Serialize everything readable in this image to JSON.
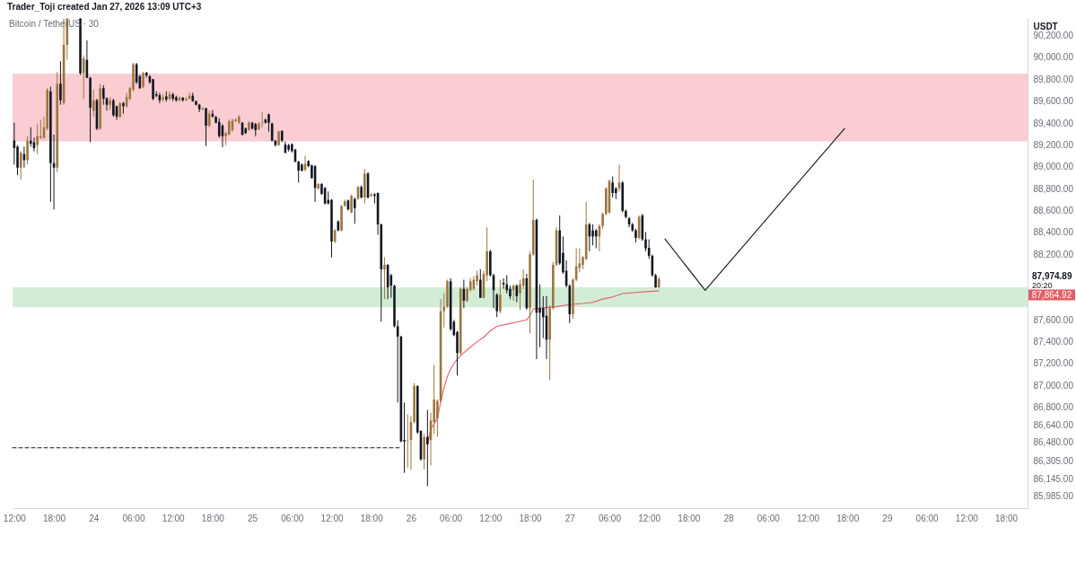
{
  "chart_data": {
    "type": "candlestick",
    "title": "Bitcoin / TetherUS · 30",
    "ylabel": "USDT",
    "annotations": [
      "Trader_Toji created Jan 27, 2026 13:09 UTC+3",
      "87,974.89",
      "20:20",
      "87,864.92"
    ],
    "xlim": [
      "2026-01-23T11:45",
      "2026-01-29T21:15"
    ],
    "ylim": [
      85878,
      90361
    ],
    "xticks": [
      {
        "value": "2026-01-23T12:00",
        "label": "12:00"
      },
      {
        "value": "2026-01-23T18:00",
        "label": "18:00"
      },
      {
        "value": "2026-01-24T00:00",
        "label": "24"
      },
      {
        "value": "2026-01-24T06:00",
        "label": "06:00"
      },
      {
        "value": "2026-01-24T12:00",
        "label": "12:00"
      },
      {
        "value": "2026-01-24T18:00",
        "label": "18:00"
      },
      {
        "value": "2026-01-25T00:00",
        "label": "25"
      },
      {
        "value": "2026-01-25T06:00",
        "label": "06:00"
      },
      {
        "value": "2026-01-25T12:00",
        "label": "12:00"
      },
      {
        "value": "2026-01-25T18:00",
        "label": "18:00"
      },
      {
        "value": "2026-01-26T00:00",
        "label": "26"
      },
      {
        "value": "2026-01-26T06:00",
        "label": "06:00"
      },
      {
        "value": "2026-01-26T12:00",
        "label": "12:00"
      },
      {
        "value": "2026-01-26T18:00",
        "label": "18:00"
      },
      {
        "value": "2026-01-27T00:00",
        "label": "27"
      },
      {
        "value": "2026-01-27T06:00",
        "label": "06:00"
      },
      {
        "value": "2026-01-27T12:00",
        "label": "12:00"
      },
      {
        "value": "2026-01-27T18:00",
        "label": "18:00"
      },
      {
        "value": "2026-01-28T00:00",
        "label": "28"
      },
      {
        "value": "2026-01-28T06:00",
        "label": "06:00"
      },
      {
        "value": "2026-01-28T12:00",
        "label": "12:00"
      },
      {
        "value": "2026-01-28T18:00",
        "label": "18:00"
      },
      {
        "value": "2026-01-29T00:00",
        "label": "29"
      },
      {
        "value": "2026-01-29T06:00",
        "label": "06:00"
      },
      {
        "value": "2026-01-29T12:00",
        "label": "12:00"
      },
      {
        "value": "2026-01-29T18:00",
        "label": "18:00"
      }
    ],
    "yticks": [
      {
        "value": 90200,
        "label": "90,200.00"
      },
      {
        "value": 90000,
        "label": "90,000.00"
      },
      {
        "value": 89800,
        "label": "89,800.00"
      },
      {
        "value": 89600,
        "label": "89,600.00"
      },
      {
        "value": 89400,
        "label": "89,400.00"
      },
      {
        "value": 89200,
        "label": "89,200.00"
      },
      {
        "value": 89000,
        "label": "89,000.00"
      },
      {
        "value": 88800,
        "label": "88,800.00"
      },
      {
        "value": 88600,
        "label": "88,600.00"
      },
      {
        "value": 88400,
        "label": "88,400.00"
      },
      {
        "value": 88200,
        "label": "88,200.00"
      },
      {
        "value": 87600,
        "label": "87,600.00"
      },
      {
        "value": 87400,
        "label": "87,400.00"
      },
      {
        "value": 87200,
        "label": "87,200.00"
      },
      {
        "value": 87000,
        "label": "87,000.00"
      },
      {
        "value": 86800,
        "label": "86,800.00"
      },
      {
        "value": 86640,
        "label": "86,640.00"
      },
      {
        "value": 86480,
        "label": "86,480.00"
      },
      {
        "value": 86305,
        "label": "86,305.00"
      },
      {
        "value": 86145,
        "label": "86,145.00"
      },
      {
        "value": 85985,
        "label": "85,985.00"
      }
    ],
    "bands": [
      {
        "axis": "y",
        "from": 89232,
        "to": 89852,
        "color": "#f9cdd2"
      },
      {
        "axis": "y",
        "from": 87715,
        "to": 87897,
        "color": "#d3ecd6"
      }
    ],
    "x": [
      "2026-01-23T12:00",
      "2026-01-23T12:30",
      "2026-01-23T13:00",
      "2026-01-23T13:30",
      "2026-01-23T14:00",
      "2026-01-23T14:30",
      "2026-01-23T15:00",
      "2026-01-23T15:30",
      "2026-01-23T16:00",
      "2026-01-23T16:30",
      "2026-01-23T17:00",
      "2026-01-23T17:30",
      "2026-01-23T18:00",
      "2026-01-23T18:30",
      "2026-01-23T19:00",
      "2026-01-23T19:30",
      "2026-01-23T20:00",
      "2026-01-23T22:00",
      "2026-01-23T22:30",
      "2026-01-23T23:00",
      "2026-01-23T23:30",
      "2026-01-24T00:00",
      "2026-01-24T00:30",
      "2026-01-24T01:00",
      "2026-01-24T01:30",
      "2026-01-24T02:00",
      "2026-01-24T02:30",
      "2026-01-24T03:00",
      "2026-01-24T03:30",
      "2026-01-24T04:00",
      "2026-01-24T04:30",
      "2026-01-24T05:00",
      "2026-01-24T05:30",
      "2026-01-24T06:00",
      "2026-01-24T06:30",
      "2026-01-24T07:00",
      "2026-01-24T07:30",
      "2026-01-24T08:00",
      "2026-01-24T08:30",
      "2026-01-24T09:00",
      "2026-01-24T09:30",
      "2026-01-24T10:00",
      "2026-01-24T10:30",
      "2026-01-24T11:00",
      "2026-01-24T11:30",
      "2026-01-24T12:00",
      "2026-01-24T12:30",
      "2026-01-24T13:00",
      "2026-01-24T13:30",
      "2026-01-24T14:00",
      "2026-01-24T14:30",
      "2026-01-24T15:00",
      "2026-01-24T15:30",
      "2026-01-24T16:00",
      "2026-01-24T16:30",
      "2026-01-24T17:00",
      "2026-01-24T17:30",
      "2026-01-24T18:00",
      "2026-01-24T18:30",
      "2026-01-24T19:00",
      "2026-01-24T19:30",
      "2026-01-24T20:00",
      "2026-01-24T20:30",
      "2026-01-24T21:00",
      "2026-01-24T21:30",
      "2026-01-24T22:00",
      "2026-01-24T22:30",
      "2026-01-24T23:00",
      "2026-01-24T23:30",
      "2026-01-25T00:00",
      "2026-01-25T00:30",
      "2026-01-25T01:00",
      "2026-01-25T01:30",
      "2026-01-25T02:00",
      "2026-01-25T02:30",
      "2026-01-25T03:00",
      "2026-01-25T03:30",
      "2026-01-25T04:00",
      "2026-01-25T04:30",
      "2026-01-25T05:00",
      "2026-01-25T05:30",
      "2026-01-25T06:00",
      "2026-01-25T06:30",
      "2026-01-25T07:00",
      "2026-01-25T07:30",
      "2026-01-25T08:00",
      "2026-01-25T08:30",
      "2026-01-25T09:00",
      "2026-01-25T09:30",
      "2026-01-25T10:00",
      "2026-01-25T10:30",
      "2026-01-25T11:00",
      "2026-01-25T11:30",
      "2026-01-25T12:00",
      "2026-01-25T12:30",
      "2026-01-25T13:00",
      "2026-01-25T13:30",
      "2026-01-25T14:00",
      "2026-01-25T14:30",
      "2026-01-25T15:00",
      "2026-01-25T15:30",
      "2026-01-25T16:00",
      "2026-01-25T16:30",
      "2026-01-25T17:00",
      "2026-01-25T17:30",
      "2026-01-25T18:00",
      "2026-01-25T18:30",
      "2026-01-25T19:00",
      "2026-01-25T19:30",
      "2026-01-25T20:00",
      "2026-01-25T20:30",
      "2026-01-25T21:00",
      "2026-01-25T21:30",
      "2026-01-25T22:00",
      "2026-01-25T22:30",
      "2026-01-25T23:00",
      "2026-01-25T23:30",
      "2026-01-26T00:00",
      "2026-01-26T00:30",
      "2026-01-26T01:00",
      "2026-01-26T01:30",
      "2026-01-26T02:00",
      "2026-01-26T02:30",
      "2026-01-26T03:00",
      "2026-01-26T03:30",
      "2026-01-26T04:00",
      "2026-01-26T04:30",
      "2026-01-26T05:00",
      "2026-01-26T05:30",
      "2026-01-26T06:00",
      "2026-01-26T06:30",
      "2026-01-26T07:00",
      "2026-01-26T07:30",
      "2026-01-26T08:00",
      "2026-01-26T08:30",
      "2026-01-26T09:00",
      "2026-01-26T09:30",
      "2026-01-26T10:00",
      "2026-01-26T10:30",
      "2026-01-26T11:00",
      "2026-01-26T11:30",
      "2026-01-26T12:00",
      "2026-01-26T12:30",
      "2026-01-26T13:00",
      "2026-01-26T13:30",
      "2026-01-26T14:00",
      "2026-01-26T14:30",
      "2026-01-26T15:00",
      "2026-01-26T15:30",
      "2026-01-26T16:00",
      "2026-01-26T16:30",
      "2026-01-26T17:00",
      "2026-01-26T17:30",
      "2026-01-26T18:00",
      "2026-01-26T18:30",
      "2026-01-26T19:00",
      "2026-01-26T19:30",
      "2026-01-26T20:00",
      "2026-01-26T20:30",
      "2026-01-26T21:00",
      "2026-01-26T21:30",
      "2026-01-26T22:00",
      "2026-01-26T22:30",
      "2026-01-26T23:00",
      "2026-01-26T23:30",
      "2026-01-27T00:00",
      "2026-01-27T00:30",
      "2026-01-27T01:00",
      "2026-01-27T01:30",
      "2026-01-27T02:00",
      "2026-01-27T02:30",
      "2026-01-27T03:00",
      "2026-01-27T03:30",
      "2026-01-27T04:00",
      "2026-01-27T04:30",
      "2026-01-27T05:00",
      "2026-01-27T05:30",
      "2026-01-27T06:00",
      "2026-01-27T06:30",
      "2026-01-27T07:00",
      "2026-01-27T07:30",
      "2026-01-27T08:00",
      "2026-01-27T08:30",
      "2026-01-27T09:00",
      "2026-01-27T09:30",
      "2026-01-27T10:00",
      "2026-01-27T10:30",
      "2026-01-27T11:00",
      "2026-01-27T11:30",
      "2026-01-27T12:00",
      "2026-01-27T12:30",
      "2026-01-27T13:00",
      "2026-01-27T13:30"
    ],
    "ohlc": [
      [
        89239,
        89403,
        89020,
        89170
      ],
      [
        89184,
        89198,
        88924,
        88992
      ],
      [
        88992,
        89143,
        88883,
        89129
      ],
      [
        89116,
        89184,
        88992,
        89061
      ],
      [
        89061,
        89280,
        89020,
        89239
      ],
      [
        89239,
        89362,
        89184,
        89211
      ],
      [
        89225,
        89266,
        89143,
        89170
      ],
      [
        89198,
        89389,
        89116,
        89280
      ],
      [
        89266,
        89430,
        89252,
        89280
      ],
      [
        89266,
        89458,
        89252,
        89362
      ],
      [
        89348,
        89718,
        89335,
        89704
      ],
      [
        89690,
        89732,
        88678,
        89034
      ],
      [
        89034,
        89294,
        88609,
        88992
      ],
      [
        88992,
        89868,
        88951,
        89759
      ],
      [
        89759,
        89964,
        89567,
        89608
      ],
      [
        89581,
        90355,
        89567,
        90115
      ],
      [
        90115,
        90360,
        89978,
        90355
      ],
      [
        90355,
        90360,
        89840,
        89855
      ],
      [
        89855,
        90019,
        89622,
        89992
      ],
      [
        89978,
        90156,
        89810,
        89814
      ],
      [
        89814,
        89820,
        89225,
        89540
      ],
      [
        89513,
        89704,
        89458,
        89608
      ],
      [
        89608,
        89622,
        89335,
        89348
      ],
      [
        89348,
        89759,
        89340,
        89718
      ],
      [
        89718,
        89745,
        89567,
        89622
      ],
      [
        89627,
        89636,
        89513,
        89567
      ],
      [
        89567,
        89636,
        89520,
        89608
      ],
      [
        89608,
        89622,
        89458,
        89471
      ],
      [
        89554,
        89560,
        89430,
        89458
      ],
      [
        89458,
        89595,
        89444,
        89581
      ],
      [
        89581,
        89595,
        89485,
        89554
      ],
      [
        89554,
        89677,
        89540,
        89636
      ],
      [
        89622,
        89732,
        89608,
        89718
      ],
      [
        89704,
        89951,
        89690,
        89937
      ],
      [
        89937,
        89951,
        89759,
        89773
      ],
      [
        89827,
        89841,
        89714,
        89718
      ],
      [
        89732,
        89868,
        89718,
        89855
      ],
      [
        89860,
        89868,
        89814,
        89835
      ],
      [
        89827,
        89841,
        89759,
        89773
      ],
      [
        89800,
        89805,
        89608,
        89622
      ],
      [
        89663,
        89690,
        89636,
        89650
      ],
      [
        89655,
        89677,
        89581,
        89608
      ],
      [
        89616,
        89663,
        89595,
        89636
      ],
      [
        89644,
        89690,
        89595,
        89616
      ],
      [
        89622,
        89690,
        89608,
        89663
      ],
      [
        89663,
        89677,
        89600,
        89622
      ],
      [
        89636,
        89650,
        89595,
        89608
      ],
      [
        89609,
        89645,
        89598,
        89630
      ],
      [
        89630,
        89640,
        89595,
        89609
      ],
      [
        89609,
        89636,
        89600,
        89622
      ],
      [
        89622,
        89677,
        89615,
        89650
      ],
      [
        89650,
        89677,
        89595,
        89600
      ],
      [
        89600,
        89605,
        89560,
        89568
      ],
      [
        89568,
        89575,
        89499,
        89526
      ],
      [
        89526,
        89545,
        89515,
        89535
      ],
      [
        89535,
        89540,
        89190,
        89376
      ],
      [
        89376,
        89513,
        89362,
        89485
      ],
      [
        89485,
        89518,
        89450,
        89458
      ],
      [
        89458,
        89464,
        89398,
        89403
      ],
      [
        89410,
        89444,
        89266,
        89280
      ],
      [
        89376,
        89390,
        89179,
        89280
      ],
      [
        89280,
        89321,
        89198,
        89308
      ],
      [
        89294,
        89431,
        89290,
        89417
      ],
      [
        89335,
        89440,
        89320,
        89422
      ],
      [
        89417,
        89445,
        89410,
        89431
      ],
      [
        89403,
        89472,
        89390,
        89458
      ],
      [
        89403,
        89410,
        89285,
        89294
      ],
      [
        89349,
        89360,
        89300,
        89308
      ],
      [
        89335,
        89417,
        89330,
        89403
      ],
      [
        89403,
        89410,
        89340,
        89349
      ],
      [
        89390,
        89403,
        89280,
        89335
      ],
      [
        89343,
        89410,
        89335,
        89395
      ],
      [
        89403,
        89499,
        89362,
        89408
      ],
      [
        89431,
        89440,
        89395,
        89403
      ],
      [
        89480,
        89485,
        89321,
        89403
      ],
      [
        89395,
        89403,
        89230,
        89239
      ],
      [
        89239,
        89245,
        89185,
        89198
      ],
      [
        89198,
        89330,
        89190,
        89321
      ],
      [
        89327,
        89335,
        89225,
        89239
      ],
      [
        89204,
        89230,
        89120,
        89130
      ],
      [
        89198,
        89210,
        89140,
        89157
      ],
      [
        89206,
        89215,
        89130,
        89143
      ],
      [
        89157,
        89165,
        89040,
        89047
      ],
      [
        89047,
        89053,
        88856,
        88965
      ],
      [
        89020,
        89030,
        88955,
        88965
      ],
      [
        88971,
        89102,
        88960,
        89026
      ],
      [
        89053,
        89060,
        88995,
        89006
      ],
      [
        89012,
        89020,
        88890,
        88897
      ],
      [
        89006,
        89015,
        88678,
        88807
      ],
      [
        88801,
        88850,
        88790,
        88842
      ],
      [
        88842,
        88850,
        88745,
        88752
      ],
      [
        88807,
        88815,
        88655,
        88664
      ],
      [
        88697,
        88774,
        88655,
        88664
      ],
      [
        88697,
        88705,
        88172,
        88317
      ],
      [
        88317,
        88430,
        88300,
        88418
      ],
      [
        88500,
        88510,
        88410,
        88418
      ],
      [
        88418,
        88650,
        88410,
        88642
      ],
      [
        88642,
        88700,
        88635,
        88684
      ],
      [
        88692,
        88700,
        88600,
        88610
      ],
      [
        88582,
        88745,
        88575,
        88733
      ],
      [
        88705,
        88720,
        88478,
        88623
      ],
      [
        88705,
        88825,
        88700,
        88815
      ],
      [
        88815,
        88830,
        88710,
        88719
      ],
      [
        88719,
        88979,
        88664,
        88938
      ],
      [
        88938,
        88950,
        88710,
        88719
      ],
      [
        88733,
        88760,
        88725,
        88747
      ],
      [
        88747,
        88760,
        88664,
        88733
      ],
      [
        88760,
        88765,
        88377,
        88473
      ],
      [
        88473,
        88480,
        87583,
        88062
      ],
      [
        88062,
        88172,
        87789,
        88103
      ],
      [
        88103,
        88110,
        87789,
        87898
      ],
      [
        88008,
        88021,
        87802,
        87912
      ],
      [
        87912,
        87920,
        87530,
        87542
      ],
      [
        87542,
        87597,
        86844,
        87447
      ],
      [
        87447,
        87455,
        86480,
        86489
      ],
      [
        86502,
        86844,
        86201,
        86489
      ],
      [
        86497,
        86735,
        86250,
        86502
      ],
      [
        86502,
        86721,
        86229,
        86666
      ],
      [
        86666,
        87022,
        86653,
        86995
      ],
      [
        86995,
        87000,
        86557,
        86571
      ],
      [
        86584,
        86590,
        86311,
        86324
      ],
      [
        86324,
        86557,
        86229,
        86530
      ],
      [
        86530,
        86776,
        86078,
        86461
      ],
      [
        86500,
        86749,
        86270,
        86680
      ],
      [
        86666,
        87187,
        86557,
        86872
      ],
      [
        86700,
        86872,
        86530,
        86858
      ],
      [
        86858,
        87789,
        86844,
        87679
      ],
      [
        87679,
        87843,
        87529,
        87720
      ],
      [
        87720,
        87967,
        87707,
        87953
      ],
      [
        87953,
        87980,
        87501,
        87515
      ],
      [
        87583,
        87600,
        87450,
        87460
      ],
      [
        87488,
        87500,
        87091,
        87296
      ],
      [
        87296,
        87900,
        87280,
        87884
      ],
      [
        87884,
        87967,
        87707,
        87775
      ],
      [
        87775,
        87900,
        87760,
        87884
      ],
      [
        87871,
        87980,
        87860,
        87953
      ],
      [
        87884,
        88000,
        87870,
        87967
      ],
      [
        87953,
        88049,
        87912,
        88008
      ],
      [
        87967,
        88062,
        87800,
        87802
      ],
      [
        87802,
        88049,
        87795,
        88021
      ],
      [
        88008,
        88446,
        87953,
        88227
      ],
      [
        88227,
        88240,
        87995,
        88008
      ],
      [
        88008,
        88021,
        87707,
        87871
      ],
      [
        87830,
        87843,
        87624,
        87679
      ],
      [
        87679,
        87967,
        87660,
        87830
      ],
      [
        87939,
        87980,
        87884,
        87925
      ],
      [
        87925,
        88008,
        87843,
        87871
      ],
      [
        87884,
        87912,
        87789,
        87816
      ],
      [
        87871,
        87925,
        87775,
        87912
      ],
      [
        87912,
        87925,
        87761,
        87816
      ],
      [
        87843,
        87967,
        87693,
        87925
      ],
      [
        87912,
        88062,
        87884,
        87980
      ],
      [
        87980,
        88021,
        87693,
        87707
      ],
      [
        87707,
        88227,
        87474,
        88199
      ],
      [
        88199,
        88883,
        88185,
        88514
      ],
      [
        88514,
        88528,
        87241,
        87665
      ],
      [
        87707,
        87925,
        87351,
        87665
      ],
      [
        87707,
        87816,
        87433,
        87624
      ],
      [
        87638,
        87816,
        87241,
        87419
      ],
      [
        87419,
        87734,
        87050,
        87707
      ],
      [
        87707,
        88131,
        87693,
        88103
      ],
      [
        88103,
        88446,
        88090,
        88418
      ],
      [
        88418,
        88555,
        88103,
        88117
      ],
      [
        88213,
        88363,
        88021,
        88035
      ],
      [
        88049,
        88144,
        87898,
        87912
      ],
      [
        87912,
        87925,
        87570,
        87652
      ],
      [
        87652,
        87980,
        87611,
        87967
      ],
      [
        87967,
        88254,
        87953,
        88090
      ],
      [
        88076,
        88254,
        88035,
        88117
      ],
      [
        88103,
        88185,
        88062,
        88172
      ],
      [
        88158,
        88678,
        88144,
        88473
      ],
      [
        88473,
        88487,
        88227,
        88363
      ],
      [
        88418,
        88473,
        88281,
        88363
      ],
      [
        88418,
        88432,
        88254,
        88363
      ],
      [
        88363,
        88473,
        88227,
        88459
      ],
      [
        88459,
        88582,
        88432,
        88569
      ],
      [
        88569,
        88815,
        88555,
        88801
      ],
      [
        88582,
        88883,
        88569,
        88870
      ],
      [
        88856,
        88911,
        88719,
        88760
      ],
      [
        88801,
        88815,
        88705,
        88760
      ],
      [
        88801,
        89020,
        88774,
        88856
      ],
      [
        88856,
        88870,
        88582,
        88596
      ],
      [
        88596,
        88610,
        88528,
        88541
      ],
      [
        88528,
        88541,
        88446,
        88473
      ],
      [
        88473,
        88487,
        88404,
        88418
      ],
      [
        88418,
        88432,
        88309,
        88350
      ],
      [
        88350,
        88555,
        88336,
        88541
      ],
      [
        88555,
        88569,
        88322,
        88336
      ],
      [
        88336,
        88404,
        88227,
        88254
      ],
      [
        88259,
        88336,
        88158,
        88185
      ],
      [
        88185,
        88199,
        87994,
        88008
      ],
      [
        88008,
        88021,
        87893,
        87898
      ],
      [
        87898,
        87994,
        87893,
        87974.89
      ]
    ],
    "colors": [
      "#131722",
      "#131722",
      "#9b7640",
      "#131722",
      "#9b7640",
      "#131722",
      "#131722",
      "#9b7640",
      "#9b7640",
      "#9b7640",
      "#9b7640",
      "#131722",
      "#131722",
      "#9b7640",
      "#131722",
      "#9b7640",
      "#9b7640",
      "#131722",
      "#9b7640",
      "#131722",
      "#131722",
      "#9b7640",
      "#131722",
      "#9b7640",
      "#131722",
      "#131722",
      "#9b7640",
      "#131722",
      "#131722",
      "#9b7640",
      "#131722",
      "#9b7640",
      "#9b7640",
      "#9b7640",
      "#131722",
      "#131722",
      "#9b7640",
      "#131722",
      "#131722",
      "#131722",
      "#131722",
      "#131722",
      "#9b7640",
      "#131722",
      "#9b7640",
      "#131722",
      "#131722",
      "#9b7640",
      "#131722",
      "#9b7640",
      "#9b7640",
      "#131722",
      "#131722",
      "#131722",
      "#9b7640",
      "#131722",
      "#9b7640",
      "#131722",
      "#131722",
      "#131722",
      "#131722",
      "#9b7640",
      "#9b7640",
      "#9b7640",
      "#9b7640",
      "#9b7640",
      "#131722",
      "#131722",
      "#9b7640",
      "#131722",
      "#131722",
      "#9b7640",
      "#9b7640",
      "#131722",
      "#131722",
      "#131722",
      "#131722",
      "#9b7640",
      "#131722",
      "#131722",
      "#131722",
      "#131722",
      "#131722",
      "#131722",
      "#131722",
      "#9b7640",
      "#131722",
      "#131722",
      "#131722",
      "#9b7640",
      "#131722",
      "#131722",
      "#131722",
      "#131722",
      "#9b7640",
      "#131722",
      "#9b7640",
      "#9b7640",
      "#131722",
      "#9b7640",
      "#131722",
      "#9b7640",
      "#131722",
      "#9b7640",
      "#131722",
      "#9b7640",
      "#131722",
      "#131722",
      "#131722",
      "#9b7640",
      "#131722",
      "#131722",
      "#131722",
      "#131722",
      "#131722",
      "#131722",
      "#9b7640",
      "#9b7640",
      "#9b7640",
      "#131722",
      "#131722",
      "#9b7640",
      "#131722",
      "#9b7640",
      "#9b7640",
      "#9b7640",
      "#9b7640",
      "#9b7640",
      "#9b7640",
      "#131722",
      "#131722",
      "#131722",
      "#9b7640",
      "#131722",
      "#9b7640",
      "#9b7640",
      "#9b7640",
      "#9b7640",
      "#131722",
      "#9b7640",
      "#9b7640",
      "#131722",
      "#131722",
      "#131722",
      "#9b7640",
      "#131722",
      "#131722",
      "#131722",
      "#9b7640",
      "#131722",
      "#9b7640",
      "#9b7640",
      "#131722",
      "#9b7640",
      "#9b7640",
      "#131722",
      "#131722",
      "#131722",
      "#131722",
      "#9b7640",
      "#9b7640",
      "#9b7640",
      "#131722",
      "#131722",
      "#131722",
      "#131722",
      "#9b7640",
      "#9b7640",
      "#9b7640",
      "#9b7640",
      "#9b7640",
      "#131722",
      "#131722",
      "#131722",
      "#9b7640",
      "#9b7640",
      "#9b7640",
      "#9b7640",
      "#131722",
      "#131722",
      "#9b7640",
      "#131722",
      "#131722",
      "#131722",
      "#131722",
      "#131722",
      "#9b7640",
      "#131722",
      "#131722",
      "#131722",
      "#131722",
      "#131722",
      "#9b7640"
    ],
    "series": [
      {
        "type": "line",
        "color": "#e35d66",
        "x": [
          "2026-01-26T02:30",
          "2026-01-26T03:00",
          "2026-01-26T03:30",
          "2026-01-26T04:00",
          "2026-01-26T04:30",
          "2026-01-26T05:00",
          "2026-01-26T05:30",
          "2026-01-26T06:00",
          "2026-01-26T06:30",
          "2026-01-26T07:00",
          "2026-01-26T08:00",
          "2026-01-26T09:00",
          "2026-01-26T10:00",
          "2026-01-26T11:00",
          "2026-01-26T12:00",
          "2026-01-26T13:00",
          "2026-01-26T14:30",
          "2026-01-26T16:00",
          "2026-01-26T17:30",
          "2026-01-26T18:00",
          "2026-01-26T18:30",
          "2026-01-26T20:00",
          "2026-01-26T22:00",
          "2026-01-27T00:00",
          "2026-01-27T02:00",
          "2026-01-27T03:30",
          "2026-01-27T05:00",
          "2026-01-27T06:30",
          "2026-01-27T08:00",
          "2026-01-27T10:00",
          "2026-01-27T12:00",
          "2026-01-27T13:30"
        ],
        "values": [
          86460,
          86600,
          86650,
          86700,
          86850,
          86980,
          87080,
          87150,
          87200,
          87240,
          87300,
          87350,
          87400,
          87440,
          87500,
          87540,
          87560,
          87580,
          87600,
          87640,
          87700,
          87710,
          87720,
          87740,
          87750,
          87760,
          87790,
          87810,
          87840,
          87850,
          87860,
          87865
        ]
      },
      {
        "type": "line",
        "color": "#131722",
        "line_style": "dashed",
        "x": [
          "2026-01-23T11:45",
          "2026-01-25T22:30"
        ],
        "values": [
          86430,
          86430
        ]
      },
      {
        "type": "line",
        "color": "#131722",
        "x": [
          "2026-01-27T14:25",
          "2026-01-27T20:30",
          "2026-01-28T17:35"
        ],
        "values": [
          88340,
          87870,
          89350
        ]
      }
    ]
  }
}
